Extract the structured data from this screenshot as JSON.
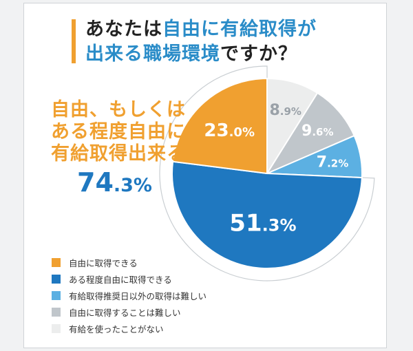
{
  "title": {
    "line1_pre": "あなたは",
    "line1_hl": "自由に有給取得が",
    "line2_hl": "出来る職場環境",
    "line2_post": "ですか？"
  },
  "callout": {
    "lines": [
      "自由、もしくは",
      "ある程度自由に",
      "有給取得出来る"
    ],
    "value_int": "74",
    "value_dec": ".3%"
  },
  "chart_data": {
    "type": "pie",
    "start_angle_deg": 0,
    "direction": "clockwise",
    "order": "inner-labels",
    "slices": [
      {
        "label": "有給を使ったことがない",
        "value": 8.9,
        "int": "8",
        "dec": ".9%",
        "color": "#eceded",
        "text_color": "#9aa1a8"
      },
      {
        "label": "自由に取得することは難しい",
        "value": 9.6,
        "int": "9",
        "dec": ".6%",
        "color": "#c0c6cb",
        "text_color": "#ffffff"
      },
      {
        "label": "有給取得推奨日以外の取得は難しい",
        "value": 7.2,
        "int": "7",
        "dec": ".2%",
        "color": "#5cb0e2",
        "text_color": "#ffffff"
      },
      {
        "label": "ある程度自由に取得できる",
        "value": 51.3,
        "int": "51",
        "dec": ".3%",
        "color": "#1f78c0",
        "text_color": "#ffffff"
      },
      {
        "label": "自由に取得できる",
        "value": 23.0,
        "int": "23",
        "dec": ".0%",
        "color": "#f0a030",
        "text_color": "#ffffff"
      }
    ]
  },
  "legend": {
    "items": [
      {
        "label": "自由に取得できる",
        "color": "#f0a030"
      },
      {
        "label": "ある程度自由に取得できる",
        "color": "#1f78c0"
      },
      {
        "label": "有給取得推奨日以外の取得は難しい",
        "color": "#5cb0e2"
      },
      {
        "label": "自由に取得することは難しい",
        "color": "#c0c6cb"
      },
      {
        "label": "有給を使ったことがない",
        "color": "#eceded"
      }
    ]
  }
}
